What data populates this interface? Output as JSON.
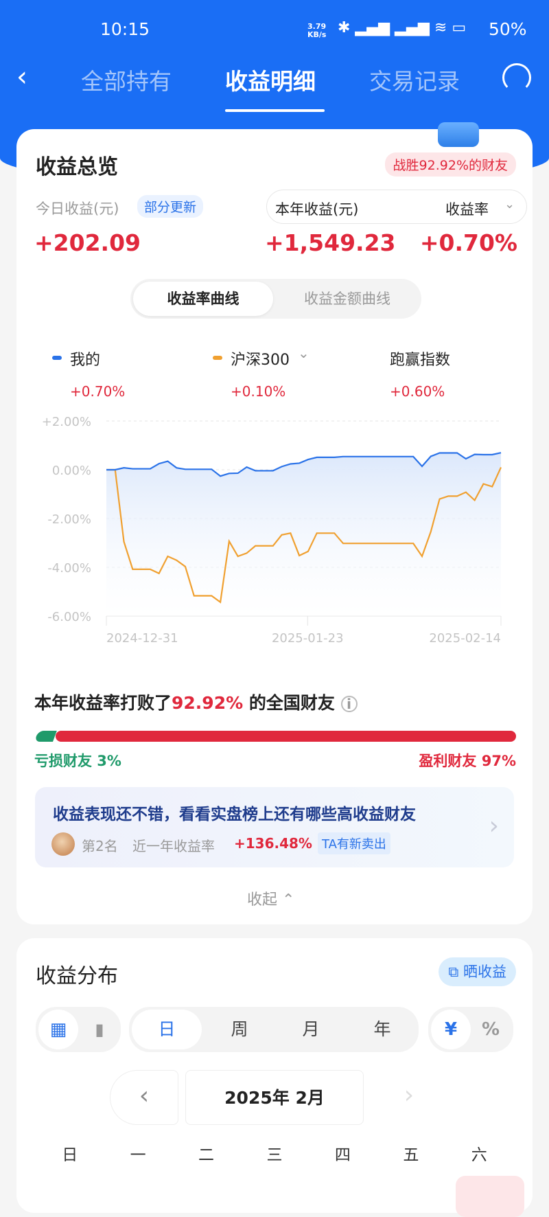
{
  "status_bar": {
    "time": "10:15",
    "net_speed": "3.79 KB/s",
    "battery": "50%"
  },
  "nav": {
    "tabs": [
      {
        "label": "全部持有"
      },
      {
        "label": "收益明细",
        "active": true
      },
      {
        "label": "交易记录"
      }
    ]
  },
  "overview": {
    "title": "收益总览",
    "beat_badge": "战胜92.92%的财友",
    "today_label": "今日收益(元)",
    "partial_update": "部分更新",
    "today_value": "+202.09",
    "year_label": "本年收益(元)",
    "rate_selector": "收益率",
    "year_value": "+1,549.23",
    "rate_value": "+0.70%",
    "curve_tabs": [
      "收益率曲线",
      "收益金额曲线"
    ],
    "legend": [
      {
        "name": "我的",
        "value": "+0.70%",
        "color": "#2a72e8"
      },
      {
        "name": "沪深300",
        "value": "+0.10%",
        "color": "#f0a030"
      },
      {
        "name": "跑赢指数",
        "value": "+0.60%"
      }
    ]
  },
  "chart_data": {
    "type": "line",
    "y_ticks": [
      "+2.00%",
      "0.00%",
      "-2.00%",
      "-4.00%",
      "-6.00%"
    ],
    "ylim": [
      -6,
      2
    ],
    "x_ticks": [
      "2024-12-31",
      "2025-01-23",
      "2025-02-14"
    ],
    "grid": true,
    "series": [
      {
        "name": "我的",
        "color": "#2a72e8",
        "values": [
          0,
          0,
          0.08,
          0.04,
          0.04,
          0.04,
          0.25,
          0.35,
          0.08,
          0.02,
          0.02,
          0.02,
          0.02,
          -0.26,
          -0.15,
          -0.14,
          0.11,
          -0.04,
          -0.04,
          -0.04,
          0.13,
          0.24,
          0.27,
          0.42,
          0.51,
          0.51,
          0.51,
          0.54,
          0.54,
          0.54,
          0.54,
          0.54,
          0.54,
          0.54,
          0.54,
          0.54,
          0.14,
          0.55,
          0.69,
          0.69,
          0.69,
          0.45,
          0.63,
          0.62,
          0.62,
          0.7
        ]
      },
      {
        "name": "沪深300",
        "color": "#f0a030",
        "values": [
          0,
          0,
          -2.95,
          -4.08,
          -4.08,
          -4.08,
          -4.25,
          -3.55,
          -3.71,
          -3.97,
          -5.17,
          -5.17,
          -5.17,
          -5.43,
          -2.93,
          -3.55,
          -3.42,
          -3.12,
          -3.12,
          -3.12,
          -2.67,
          -2.6,
          -3.52,
          -3.35,
          -2.6,
          -2.6,
          -2.6,
          -3.02,
          -3.02,
          -3.02,
          -3.02,
          -3.02,
          -3.02,
          -3.02,
          -3.02,
          -3.02,
          -3.55,
          -2.54,
          -1.2,
          -1.08,
          -1.08,
          -0.92,
          -1.25,
          -0.58,
          -0.69,
          0.1
        ]
      }
    ]
  },
  "rank": {
    "prefix": "本年收益率打败了",
    "percent": "92.92%",
    "suffix": "的全国财友",
    "loss_label": "亏损财友 3%",
    "profit_label": "盈利财友 97%",
    "loss_fraction": 0.03
  },
  "promo": {
    "title": "收益表现还不错，看看实盘榜上还有哪些高收益财友",
    "rank": "第2名",
    "metric_label": "近一年收益率",
    "metric_value": "+136.48%",
    "tag": "TA有新卖出"
  },
  "collapse": "收起",
  "distribution": {
    "title": "收益分布",
    "share": "晒收益",
    "periods": [
      "日",
      "周",
      "月",
      "年"
    ],
    "active_period": "日",
    "units": [
      "¥",
      "%"
    ],
    "month": "2025年 2月",
    "weekdays": [
      "日",
      "一",
      "二",
      "三",
      "四",
      "五",
      "六"
    ]
  }
}
